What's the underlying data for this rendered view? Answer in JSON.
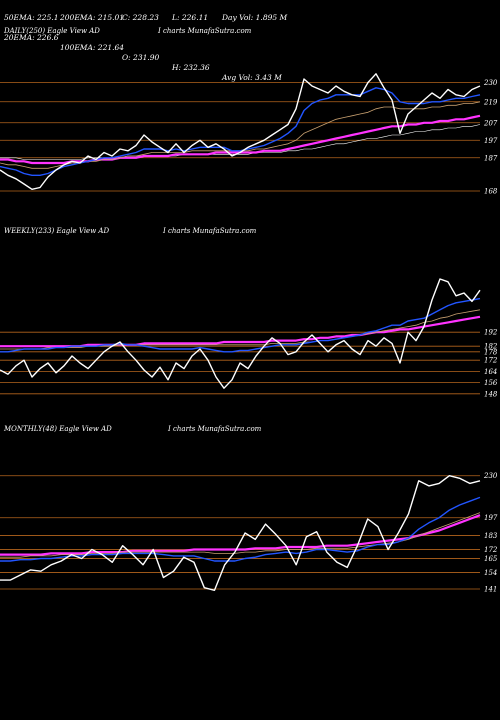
{
  "header": {
    "row1": [
      "20EMA: 226.6",
      "100EMA: 221.64",
      "O: 231.90",
      "H: 232.36",
      "Avg Vol: 3.43 M"
    ],
    "row2": [
      "50EMA: 225.1",
      "200EMA: 215.01",
      "C: 228.23",
      "L: 226.11",
      "Day Vol: 1.895 M"
    ]
  },
  "colors": {
    "background": "#000000",
    "price": "#ffffff",
    "ema_blue": "#2255ff",
    "ema_magenta": "#ff33ff",
    "gridline": "#b5651d"
  },
  "chart_data": [
    {
      "type": "line",
      "label": "DAILY(250) Eagle  View  AD",
      "watermark": "I charts MunafaSutra.com",
      "yticks": [
        230,
        219,
        207,
        197,
        187,
        168
      ],
      "ylim": [
        160,
        240
      ],
      "x": [
        0,
        1,
        2,
        3,
        4,
        5,
        6,
        7,
        8,
        9,
        10,
        11,
        12,
        13,
        14,
        15,
        16,
        17,
        18,
        19,
        20,
        21,
        22,
        23,
        24,
        25,
        26,
        27,
        28,
        29,
        30,
        31,
        32,
        33,
        34,
        35,
        36,
        37,
        38,
        39,
        40,
        41,
        42,
        43,
        44,
        45,
        46,
        47,
        48,
        49,
        50,
        51,
        52,
        53,
        54,
        55,
        56,
        57,
        58,
        59,
        60
      ],
      "series": [
        {
          "values": [
            180,
            177,
            175,
            172,
            169,
            170,
            176,
            180,
            183,
            185,
            184,
            188,
            186,
            190,
            188,
            192,
            191,
            194,
            200,
            196,
            193,
            190,
            195,
            190,
            194,
            197,
            193,
            195,
            192,
            188,
            190,
            193,
            195,
            197,
            200,
            203,
            206,
            215,
            232,
            228,
            226,
            224,
            228,
            225,
            223,
            222,
            230,
            235,
            227,
            220,
            201,
            212,
            216,
            220,
            224,
            221,
            226,
            223,
            222,
            226,
            228
          ]
        },
        {
          "values": [
            182,
            181,
            180,
            178,
            177,
            177,
            178,
            180,
            182,
            183,
            184,
            185,
            186,
            187,
            187,
            188,
            189,
            190,
            192,
            192,
            192,
            191,
            192,
            191,
            192,
            193,
            193,
            193,
            193,
            191,
            191,
            192,
            193,
            194,
            196,
            198,
            201,
            205,
            214,
            218,
            220,
            221,
            223,
            223,
            223,
            223,
            225,
            227,
            226,
            224,
            219,
            218,
            218,
            218,
            219,
            219,
            220,
            221,
            221,
            222,
            223
          ]
        },
        {
          "values": [
            184,
            183,
            183,
            182,
            181,
            181,
            181,
            182,
            183,
            184,
            184,
            185,
            185,
            186,
            186,
            187,
            188,
            188,
            189,
            190,
            190,
            190,
            190,
            190,
            191,
            191,
            191,
            191,
            191,
            191,
            191,
            191,
            192,
            192,
            193,
            194,
            195,
            197,
            201,
            203,
            205,
            207,
            209,
            210,
            211,
            212,
            213,
            215,
            216,
            216,
            215,
            215,
            215,
            215,
            216,
            216,
            217,
            217,
            218,
            218,
            219
          ]
        },
        {
          "values": [
            186,
            186,
            185,
            185,
            184,
            184,
            184,
            184,
            184,
            185,
            185,
            185,
            186,
            186,
            186,
            187,
            187,
            187,
            188,
            188,
            188,
            188,
            189,
            189,
            189,
            189,
            189,
            190,
            190,
            190,
            190,
            190,
            190,
            191,
            191,
            191,
            192,
            193,
            194,
            195,
            196,
            197,
            198,
            199,
            200,
            201,
            202,
            203,
            204,
            205,
            205,
            206,
            206,
            207,
            207,
            208,
            208,
            209,
            209,
            210,
            211
          ]
        },
        {
          "values": [
            187,
            187,
            187,
            186,
            186,
            186,
            186,
            186,
            186,
            186,
            186,
            187,
            187,
            187,
            187,
            187,
            188,
            188,
            188,
            188,
            188,
            188,
            188,
            189,
            189,
            189,
            189,
            189,
            189,
            189,
            189,
            189,
            190,
            190,
            190,
            190,
            191,
            191,
            192,
            192,
            193,
            194,
            195,
            195,
            196,
            197,
            198,
            198,
            199,
            200,
            200,
            201,
            202,
            202,
            203,
            203,
            204,
            204,
            205,
            205,
            206
          ]
        }
      ]
    },
    {
      "type": "line",
      "label": "WEEKLY(233) Eagle  View  AD",
      "watermark": "I charts MunafaSutra.com",
      "yticks": [
        192,
        182,
        178,
        172,
        164,
        156,
        148
      ],
      "ylim": [
        140,
        240
      ],
      "x": [
        0,
        1,
        2,
        3,
        4,
        5,
        6,
        7,
        8,
        9,
        10,
        11,
        12,
        13,
        14,
        15,
        16,
        17,
        18,
        19,
        20,
        21,
        22,
        23,
        24,
        25,
        26,
        27,
        28,
        29,
        30,
        31,
        32,
        33,
        34,
        35,
        36,
        37,
        38,
        39,
        40,
        41,
        42,
        43,
        44,
        45,
        46,
        47,
        48,
        49,
        50,
        51,
        52,
        53,
        54,
        55,
        56,
        57,
        58,
        59,
        60
      ],
      "series": [
        {
          "values": [
            165,
            162,
            168,
            172,
            160,
            166,
            170,
            163,
            168,
            175,
            170,
            166,
            172,
            178,
            182,
            185,
            178,
            172,
            165,
            160,
            167,
            158,
            170,
            166,
            175,
            180,
            172,
            160,
            152,
            158,
            170,
            166,
            175,
            182,
            188,
            184,
            176,
            178,
            185,
            190,
            184,
            178,
            183,
            186,
            180,
            176,
            186,
            182,
            188,
            184,
            170,
            192,
            186,
            196,
            215,
            230,
            228,
            218,
            220,
            214,
            222
          ]
        },
        {
          "values": [
            178,
            178,
            179,
            180,
            180,
            180,
            180,
            181,
            181,
            182,
            182,
            182,
            182,
            183,
            183,
            184,
            183,
            183,
            182,
            181,
            180,
            180,
            180,
            180,
            180,
            181,
            180,
            179,
            178,
            178,
            179,
            179,
            180,
            181,
            182,
            183,
            183,
            183,
            184,
            185,
            186,
            186,
            187,
            188,
            189,
            190,
            192,
            193,
            195,
            197,
            197,
            200,
            201,
            202,
            205,
            208,
            211,
            213,
            214,
            215,
            216
          ]
        },
        {
          "values": [
            180,
            180,
            180,
            180,
            180,
            180,
            181,
            181,
            181,
            181,
            181,
            182,
            182,
            182,
            182,
            183,
            183,
            183,
            183,
            183,
            183,
            183,
            183,
            183,
            183,
            183,
            183,
            183,
            183,
            183,
            183,
            183,
            183,
            183,
            184,
            184,
            184,
            184,
            185,
            185,
            186,
            186,
            187,
            188,
            189,
            190,
            191,
            192,
            193,
            194,
            195,
            196,
            197,
            199,
            200,
            202,
            203,
            205,
            206,
            207,
            208
          ]
        },
        {
          "values": [
            182,
            182,
            182,
            182,
            182,
            182,
            182,
            182,
            182,
            182,
            182,
            183,
            183,
            183,
            183,
            183,
            183,
            183,
            184,
            184,
            184,
            184,
            184,
            184,
            184,
            184,
            184,
            184,
            185,
            185,
            185,
            185,
            185,
            185,
            186,
            186,
            186,
            186,
            187,
            187,
            188,
            188,
            189,
            189,
            190,
            190,
            191,
            192,
            192,
            193,
            194,
            194,
            195,
            196,
            197,
            198,
            199,
            200,
            201,
            202,
            203
          ]
        }
      ]
    },
    {
      "type": "line",
      "label": "MONTHLY(48) Eagle  View  AD",
      "watermark": "I charts MunafaSutra.com",
      "yticks": [
        230,
        197,
        183,
        172,
        165,
        154,
        141
      ],
      "ylim": [
        130,
        240
      ],
      "x": [
        0,
        1,
        2,
        3,
        4,
        5,
        6,
        7,
        8,
        9,
        10,
        11,
        12,
        13,
        14,
        15,
        16,
        17,
        18,
        19,
        20,
        21,
        22,
        23,
        24,
        25,
        26,
        27,
        28,
        29,
        30,
        31,
        32,
        33,
        34,
        35,
        36,
        37,
        38,
        39,
        40,
        41,
        42,
        43,
        44,
        45,
        46,
        47
      ],
      "series": [
        {
          "values": [
            148,
            148,
            152,
            156,
            155,
            160,
            163,
            168,
            165,
            172,
            168,
            162,
            175,
            168,
            160,
            172,
            150,
            155,
            166,
            162,
            142,
            140,
            160,
            170,
            185,
            180,
            192,
            184,
            175,
            160,
            182,
            186,
            170,
            162,
            158,
            175,
            196,
            190,
            172,
            185,
            200,
            226,
            222,
            224,
            230,
            228,
            224,
            226
          ]
        },
        {
          "values": [
            163,
            163,
            164,
            164,
            165,
            165,
            166,
            167,
            167,
            168,
            168,
            168,
            169,
            169,
            169,
            169,
            168,
            167,
            167,
            167,
            165,
            163,
            163,
            163,
            165,
            166,
            168,
            169,
            170,
            169,
            170,
            172,
            172,
            171,
            170,
            171,
            174,
            176,
            176,
            178,
            181,
            188,
            193,
            197,
            203,
            207,
            210,
            213
          ]
        },
        {
          "values": [
            166,
            166,
            166,
            167,
            167,
            167,
            168,
            168,
            168,
            169,
            169,
            169,
            170,
            170,
            170,
            170,
            170,
            170,
            170,
            170,
            170,
            169,
            169,
            169,
            170,
            170,
            171,
            171,
            172,
            172,
            172,
            173,
            173,
            173,
            173,
            174,
            175,
            176,
            177,
            178,
            180,
            183,
            186,
            189,
            192,
            195,
            198,
            201
          ]
        },
        {
          "values": [
            168,
            168,
            168,
            168,
            168,
            169,
            169,
            169,
            169,
            170,
            170,
            170,
            170,
            171,
            171,
            171,
            171,
            171,
            171,
            172,
            172,
            172,
            172,
            172,
            172,
            173,
            173,
            173,
            174,
            174,
            174,
            174,
            175,
            175,
            175,
            176,
            177,
            178,
            179,
            180,
            181,
            183,
            185,
            187,
            190,
            193,
            196,
            199
          ]
        }
      ]
    }
  ]
}
